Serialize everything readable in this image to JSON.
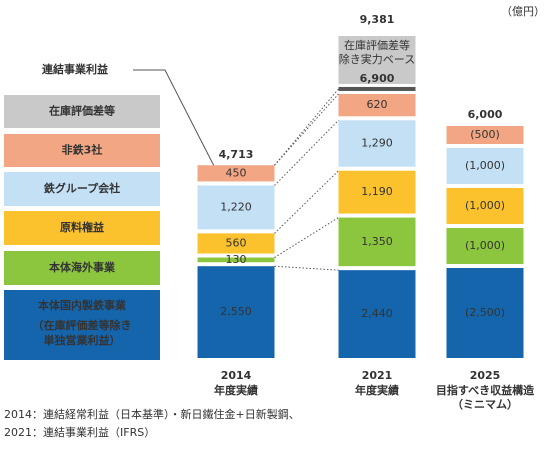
{
  "chart_data": {
    "type": "bar",
    "stacked": true,
    "unit": "（億円）",
    "profit_label": "連結事業利益",
    "categories": [
      "2014",
      "2021",
      "2025"
    ],
    "category_notes": [
      [
        "年度実績"
      ],
      [
        "年度実績"
      ],
      [
        "目指すべき収益構造",
        "（ミニマム）"
      ]
    ],
    "series": [
      {
        "name": "本体国内製鉄事業",
        "note": [
          "（在庫評価差等除き",
          "単独営業利益）"
        ],
        "color": "#1565ad",
        "text_color": "#ffffff",
        "values": [
          2550,
          2440,
          2500
        ],
        "value_labels": [
          "2,550",
          "2,440",
          "(2,500)"
        ]
      },
      {
        "name": "本体海外事業",
        "color": "#8cc63e",
        "text_color": "#333333",
        "values": [
          130,
          1350,
          1000
        ],
        "value_labels": [
          "130",
          "1,350",
          "(1,000)"
        ]
      },
      {
        "name": "原料権益",
        "color": "#fcc22d",
        "text_color": "#333333",
        "values": [
          560,
          1190,
          1000
        ],
        "value_labels": [
          "560",
          "1,190",
          "(1,000)"
        ]
      },
      {
        "name": "鉄グループ会社",
        "color": "#c3e0f5",
        "text_color": "#333333",
        "values": [
          1220,
          1290,
          1000
        ],
        "value_labels": [
          "1,220",
          "1,290",
          "(1,000)"
        ]
      },
      {
        "name": "非鉄3社",
        "color": "#f3a683",
        "text_color": "#333333",
        "values": [
          450,
          620,
          500
        ],
        "value_labels": [
          "450",
          "620",
          "(500)"
        ]
      },
      {
        "name": "在庫評価差等",
        "color": "#c9c9c9",
        "text_color": "#333333",
        "values": [
          null,
          null,
          null
        ],
        "value_labels": [
          null,
          null,
          null
        ]
      }
    ],
    "totals": {
      "values": [
        4713,
        9381,
        6000
      ],
      "value_labels": [
        "4,713",
        "9,381",
        "6,000"
      ]
    },
    "adjusted_2021": {
      "text": [
        "在庫評価差等",
        "除き実力ベース"
      ],
      "value": 6900,
      "value_label": "6,900"
    },
    "footnotes": [
      "2014：連結経常利益（日本基準）・新日鐵住金+日新製鋼、",
      "2021：連結事業利益（IFRS）"
    ]
  }
}
